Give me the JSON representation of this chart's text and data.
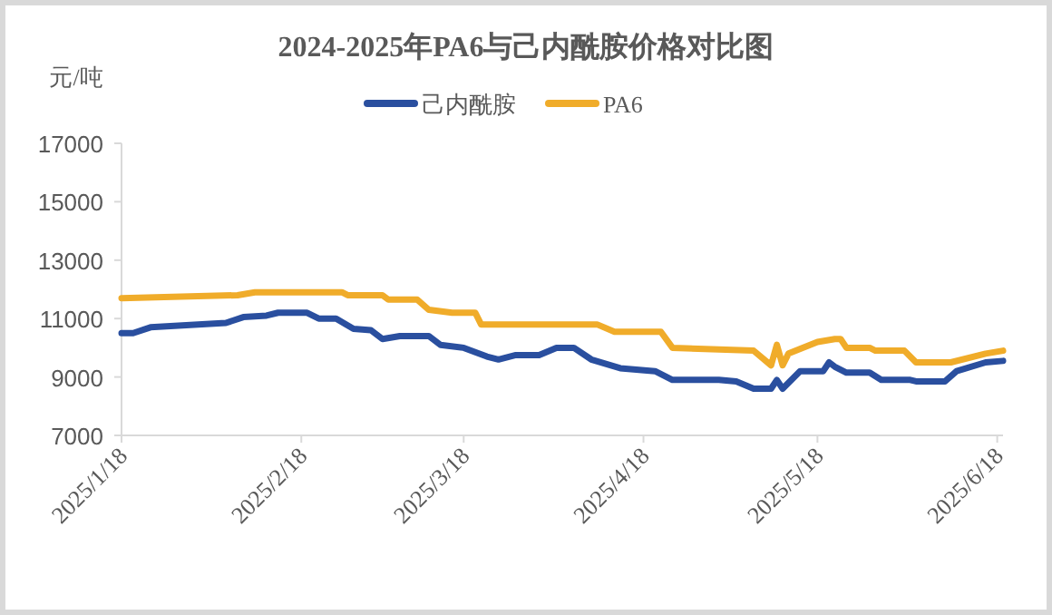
{
  "chart_data": {
    "type": "line",
    "title": "2024-2025年PA6与己内酰胺价格对比图",
    "ylabel": "元/吨",
    "xlim": [
      "2025-01-18",
      "2025-06-19"
    ],
    "xticks": [
      {
        "value": "2025-01-18",
        "label": "2025/1/18"
      },
      {
        "value": "2025-02-18",
        "label": "2025/2/18"
      },
      {
        "value": "2025-03-18",
        "label": "2025/3/18"
      },
      {
        "value": "2025-04-18",
        "label": "2025/4/18"
      },
      {
        "value": "2025-05-18",
        "label": "2025/5/18"
      },
      {
        "value": "2025-06-18",
        "label": "2025/6/18"
      }
    ],
    "ylim": [
      7000,
      17000
    ],
    "yticks": [
      7000,
      9000,
      11000,
      13000,
      15000,
      17000
    ],
    "grid": false,
    "legend": "top",
    "marker": "none",
    "line_style": "solid",
    "series": [
      {
        "name": "己内酰胺",
        "color": "#2a4f9f",
        "x": [
          "2025-01-18",
          "2025-01-20",
          "2025-01-23",
          "2025-02-05",
          "2025-02-08",
          "2025-02-12",
          "2025-02-14",
          "2025-02-19",
          "2025-02-21",
          "2025-02-24",
          "2025-02-27",
          "2025-03-02",
          "2025-03-04",
          "2025-03-07",
          "2025-03-12",
          "2025-03-14",
          "2025-03-18",
          "2025-03-22",
          "2025-03-24",
          "2025-03-27",
          "2025-03-31",
          "2025-04-03",
          "2025-04-06",
          "2025-04-09",
          "2025-04-14",
          "2025-04-20",
          "2025-04-23",
          "2025-05-01",
          "2025-05-04",
          "2025-05-07",
          "2025-05-10",
          "2025-05-11",
          "2025-05-12",
          "2025-05-15",
          "2025-05-19",
          "2025-05-20",
          "2025-05-21",
          "2025-05-23",
          "2025-05-27",
          "2025-05-29",
          "2025-06-03",
          "2025-06-04",
          "2025-06-09",
          "2025-06-11",
          "2025-06-16",
          "2025-06-19"
        ],
        "values": [
          10500,
          10500,
          10700,
          10850,
          11050,
          11100,
          11200,
          11200,
          11000,
          11000,
          10650,
          10600,
          10300,
          10400,
          10400,
          10100,
          10000,
          9700,
          9600,
          9750,
          9750,
          10000,
          10000,
          9600,
          9300,
          9200,
          8900,
          8900,
          8850,
          8600,
          8600,
          8900,
          8600,
          9200,
          9200,
          9500,
          9350,
          9150,
          9150,
          8900,
          8900,
          8850,
          8850,
          9200,
          9500,
          9550
        ]
      },
      {
        "name": "PA6",
        "color": "#f0ac2a",
        "x": [
          "2025-01-18",
          "2025-02-07",
          "2025-02-10",
          "2025-02-25",
          "2025-02-26",
          "2025-03-04",
          "2025-03-05",
          "2025-03-10",
          "2025-03-12",
          "2025-03-16",
          "2025-03-20",
          "2025-03-21",
          "2025-04-10",
          "2025-04-13",
          "2025-04-21",
          "2025-04-23",
          "2025-05-07",
          "2025-05-10",
          "2025-05-11",
          "2025-05-12",
          "2025-05-13",
          "2025-05-18",
          "2025-05-21",
          "2025-05-22",
          "2025-05-23",
          "2025-05-27",
          "2025-05-28",
          "2025-06-02",
          "2025-06-04",
          "2025-06-10",
          "2025-06-16",
          "2025-06-19"
        ],
        "values": [
          11700,
          11800,
          11900,
          11900,
          11800,
          11800,
          11650,
          11650,
          11300,
          11200,
          11200,
          10800,
          10800,
          10550,
          10550,
          10000,
          9900,
          9400,
          10100,
          9400,
          9800,
          10200,
          10300,
          10300,
          10000,
          10000,
          9900,
          9900,
          9500,
          9500,
          9800,
          9900
        ]
      }
    ]
  }
}
